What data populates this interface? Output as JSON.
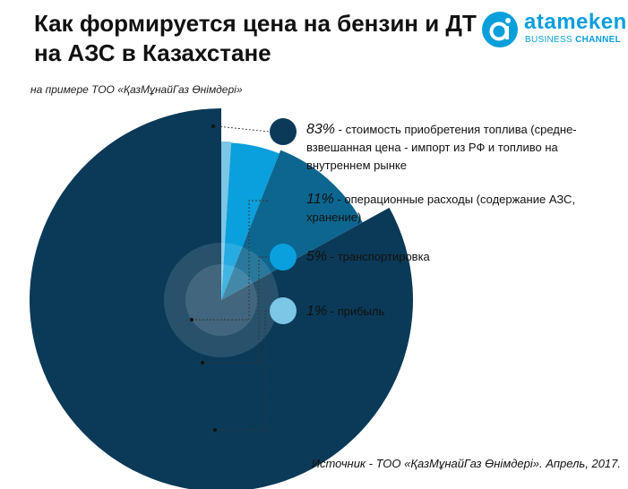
{
  "header": {
    "title_line1": "Как формируется цена на бензин и ДТ",
    "title_line2": "на АЗС в Казахстане",
    "subtitle": "на примере ТОО «ҚазМұнайГаз Өнімдері»"
  },
  "logo": {
    "name": "atameken",
    "sub_regular": "BUSINESS",
    "sub_bold": "CHANNEL",
    "color": "#0a9fdc"
  },
  "chart_data": {
    "type": "pie",
    "title": "Как формируется цена на бензин и ДТ на АЗС в Казахстане",
    "subtitle": "на примере ТОО «ҚазМұнайГаз Өнімдері»",
    "slices": [
      {
        "value": 83,
        "pct_label": "83%",
        "label": "стоимость приобретения топлива (средне-взвешанная цена - импорт из РФ и топливо на внутреннем рынке",
        "color": "#0b3a58"
      },
      {
        "value": 11,
        "pct_label": "11%",
        "label": "операционные расходы (содержание АЗС, хранение)",
        "color": "#0d668f"
      },
      {
        "value": 5,
        "pct_label": "5%",
        "label": "транспортировка",
        "color": "#0aa0dd"
      },
      {
        "value": 1,
        "pct_label": "1%",
        "label": "прибыль",
        "color": "#7cc6e6"
      }
    ]
  },
  "legend": [
    {
      "pct": "83%",
      "lines": [
        "- стоимость приобретения топлива (средне-",
        "взвешанная цена - импорт из РФ и топливо на",
        "внутреннем рынке"
      ]
    },
    {
      "pct": "11%",
      "lines": [
        "- операционные расходы (содержание АЗС,",
        "хранение)"
      ]
    },
    {
      "pct": "5%",
      "lines": [
        "- транспортировка"
      ]
    },
    {
      "pct": "1%",
      "lines": [
        "- прибыль"
      ]
    }
  ],
  "source": "Источник - ТОО «ҚазМұнайГаз Өнімдері». Апрель, 2017."
}
